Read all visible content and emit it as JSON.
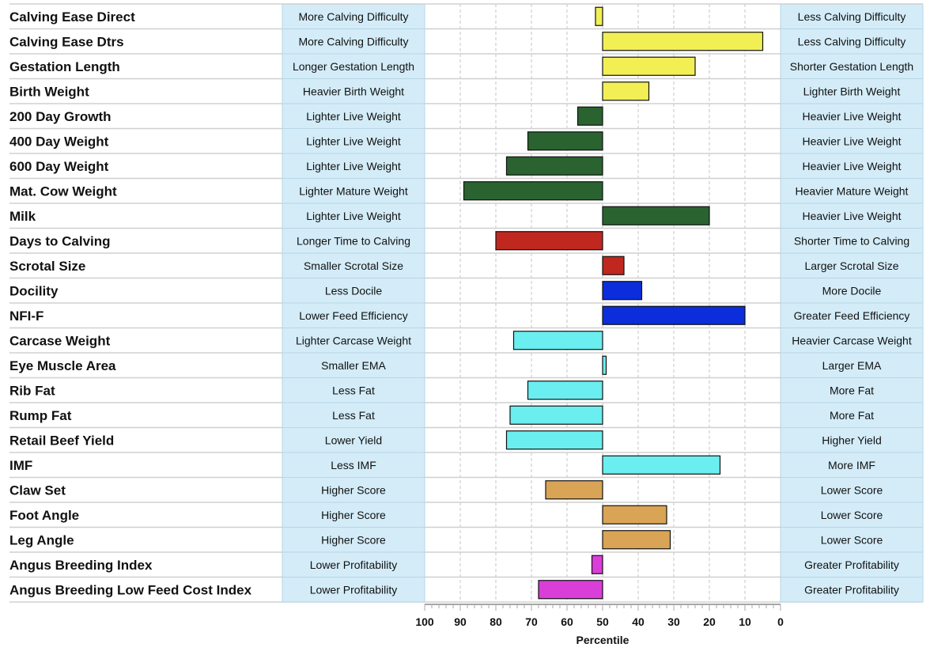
{
  "chart_data": {
    "type": "bar",
    "orientation": "horizontal",
    "xlabel": "Percentile",
    "xlim": [
      100,
      0
    ],
    "x_reversed": true,
    "baseline": 50,
    "ticks": [
      "100",
      "90",
      "80",
      "70",
      "60",
      "50",
      "40",
      "30",
      "20",
      "10",
      "0"
    ],
    "colors": {
      "calving": "#f2ef55",
      "growth": "#2a6330",
      "fertility": "#c0271e",
      "temperament": "#0b2ddb",
      "carcase": "#6beef0",
      "structure": "#d9a455",
      "index": "#d93ed9",
      "label_box": "#d3ecf8",
      "label_box_border": "#b7d6e6"
    },
    "traits": [
      {
        "name": "Calving Ease Direct",
        "low": "More Calving Difficulty",
        "high": "Less Calving Difficulty",
        "percentile": 52,
        "group": "calving"
      },
      {
        "name": "Calving Ease Dtrs",
        "low": "More Calving Difficulty",
        "high": "Less Calving Difficulty",
        "percentile": 5,
        "group": "calving"
      },
      {
        "name": "Gestation Length",
        "low": "Longer Gestation Length",
        "high": "Shorter Gestation Length",
        "percentile": 24,
        "group": "calving"
      },
      {
        "name": "Birth Weight",
        "low": "Heavier Birth Weight",
        "high": "Lighter Birth Weight",
        "percentile": 37,
        "group": "calving"
      },
      {
        "name": "200 Day Growth",
        "low": "Lighter Live Weight",
        "high": "Heavier Live Weight",
        "percentile": 57,
        "group": "growth"
      },
      {
        "name": "400 Day Weight",
        "low": "Lighter Live Weight",
        "high": "Heavier Live Weight",
        "percentile": 71,
        "group": "growth"
      },
      {
        "name": "600 Day Weight",
        "low": "Lighter Live Weight",
        "high": "Heavier Live Weight",
        "percentile": 77,
        "group": "growth"
      },
      {
        "name": "Mat. Cow Weight",
        "low": "Lighter Mature Weight",
        "high": "Heavier Mature Weight",
        "percentile": 89,
        "group": "growth"
      },
      {
        "name": "Milk",
        "low": "Lighter Live Weight",
        "high": "Heavier Live Weight",
        "percentile": 20,
        "group": "growth"
      },
      {
        "name": "Days to Calving",
        "low": "Longer Time to Calving",
        "high": "Shorter Time to Calving",
        "percentile": 80,
        "group": "fertility"
      },
      {
        "name": "Scrotal Size",
        "low": "Smaller Scrotal Size",
        "high": "Larger Scrotal Size",
        "percentile": 44,
        "group": "fertility"
      },
      {
        "name": "Docility",
        "low": "Less Docile",
        "high": "More Docile",
        "percentile": 39,
        "group": "temperament"
      },
      {
        "name": "NFI-F",
        "low": "Lower Feed Efficiency",
        "high": "Greater Feed Efficiency",
        "percentile": 10,
        "group": "temperament"
      },
      {
        "name": "Carcase Weight",
        "low": "Lighter Carcase Weight",
        "high": "Heavier Carcase Weight",
        "percentile": 75,
        "group": "carcase"
      },
      {
        "name": "Eye Muscle Area",
        "low": "Smaller EMA",
        "high": "Larger EMA",
        "percentile": 49,
        "group": "carcase"
      },
      {
        "name": "Rib Fat",
        "low": "Less Fat",
        "high": "More Fat",
        "percentile": 71,
        "group": "carcase"
      },
      {
        "name": "Rump Fat",
        "low": "Less Fat",
        "high": "More Fat",
        "percentile": 76,
        "group": "carcase"
      },
      {
        "name": "Retail Beef Yield",
        "low": "Lower Yield",
        "high": "Higher Yield",
        "percentile": 77,
        "group": "carcase"
      },
      {
        "name": "IMF",
        "low": "Less IMF",
        "high": "More IMF",
        "percentile": 17,
        "group": "carcase"
      },
      {
        "name": "Claw Set",
        "low": "Higher Score",
        "high": "Lower Score",
        "percentile": 66,
        "group": "structure"
      },
      {
        "name": "Foot Angle",
        "low": "Higher Score",
        "high": "Lower Score",
        "percentile": 32,
        "group": "structure"
      },
      {
        "name": "Leg Angle",
        "low": "Higher Score",
        "high": "Lower Score",
        "percentile": 31,
        "group": "structure"
      },
      {
        "name": "Angus Breeding Index",
        "low": "Lower Profitability",
        "high": "Greater Profitability",
        "percentile": 53,
        "group": "index"
      },
      {
        "name": "Angus Breeding Low Feed Cost Index",
        "low": "Lower Profitability",
        "high": "Greater Profitability",
        "percentile": 68,
        "group": "index"
      }
    ]
  }
}
